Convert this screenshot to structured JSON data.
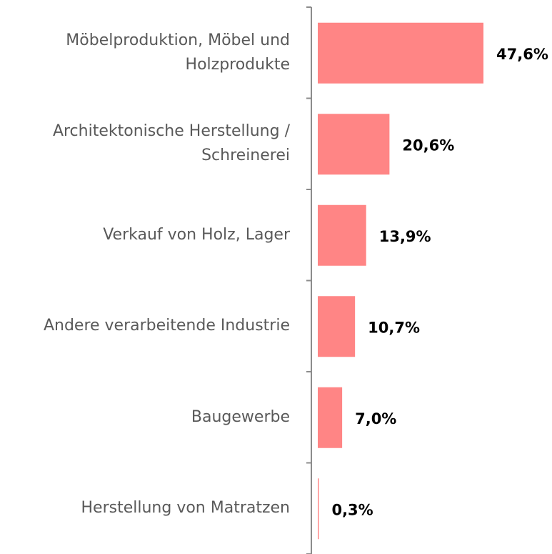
{
  "chart_data": {
    "type": "bar",
    "orientation": "horizontal",
    "categories": [
      "Möbelproduktion, Möbel und Holzprodukte",
      "Architektonische Herstellung / Schreinerei",
      "Verkauf von Holz, Lager",
      "Andere verarbeitende Industrie",
      "Baugewerbe",
      "Herstellung von Matratzen"
    ],
    "values": [
      47.6,
      20.6,
      13.9,
      10.7,
      7.0,
      0.3
    ],
    "value_labels": [
      "47,6%",
      "20,6%",
      "13,9%",
      "10,7%",
      "7,0%",
      "0,3%"
    ],
    "color": "#ff8585"
  }
}
